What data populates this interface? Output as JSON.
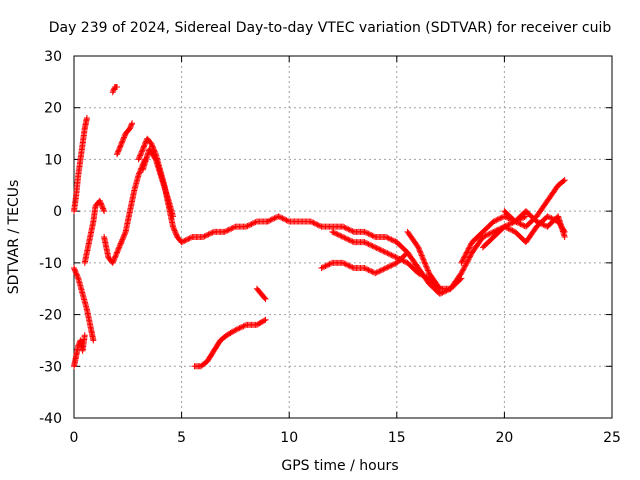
{
  "chart_data": {
    "type": "scatter",
    "title": "Day 239 of 2024, Sidereal Day-to-day VTEC variation (SDTVAR) for receiver cuib",
    "xlabel": "GPS time / hours",
    "ylabel": "SDTVAR / TECUs",
    "xlim": [
      0,
      25
    ],
    "ylim": [
      -40,
      30
    ],
    "xticks": [
      0,
      5,
      10,
      15,
      20,
      25
    ],
    "yticks": [
      -40,
      -30,
      -20,
      -10,
      0,
      10,
      20,
      30
    ],
    "grid": true,
    "marker": "+",
    "series": [
      {
        "name": "SDTVAR",
        "color": "#ff0000",
        "segments": [
          {
            "x": [
              0.0,
              0.1,
              0.2,
              0.3,
              0.4,
              0.5,
              0.6
            ],
            "y": [
              0,
              3,
              7,
              10,
              13,
              16,
              18
            ]
          },
          {
            "x": [
              0.0,
              0.1,
              0.2,
              0.3,
              0.4,
              0.5
            ],
            "y": [
              -30,
              -28,
              -26,
              -25,
              -27,
              -24
            ]
          },
          {
            "x": [
              0.0,
              0.2,
              0.4,
              0.6,
              0.8,
              0.9
            ],
            "y": [
              -11,
              -13,
              -16,
              -19,
              -23,
              -25
            ]
          },
          {
            "x": [
              0.5,
              0.7,
              0.9,
              1.0,
              1.2,
              1.4
            ],
            "y": [
              -10,
              -6,
              -2,
              1,
              2,
              0
            ]
          },
          {
            "x": [
              1.4,
              1.6,
              1.8,
              2.0,
              2.2
            ],
            "y": [
              -5,
              -9,
              -10,
              -8,
              -6
            ]
          },
          {
            "x": [
              1.8,
              1.9,
              2.0
            ],
            "y": [
              23,
              24,
              24
            ]
          },
          {
            "x": [
              2.0,
              2.2,
              2.4,
              2.6,
              2.7
            ],
            "y": [
              11,
              13,
              15,
              16,
              17
            ]
          },
          {
            "x": [
              2.2,
              2.4,
              2.6,
              2.8,
              3.0,
              3.2,
              3.3
            ],
            "y": [
              -6,
              -4,
              0,
              4,
              7,
              9,
              10
            ]
          },
          {
            "x": [
              3.0,
              3.2,
              3.4,
              3.6,
              3.8,
              4.0,
              4.2,
              4.4,
              4.6,
              4.8,
              5.0
            ],
            "y": [
              10,
              12,
              14,
              13,
              11,
              8,
              5,
              1,
              -3,
              -5,
              -6
            ]
          },
          {
            "x": [
              3.2,
              3.5,
              3.8,
              4.1,
              4.4,
              4.6
            ],
            "y": [
              8,
              12,
              10,
              6,
              2,
              -1
            ]
          },
          {
            "x": [
              5.0,
              5.5,
              6.0,
              6.5,
              7.0,
              7.5,
              8.0,
              8.5,
              9.0
            ],
            "y": [
              -6,
              -5,
              -5,
              -4,
              -4,
              -3,
              -3,
              -2,
              -2
            ]
          },
          {
            "x": [
              9.0,
              9.5,
              10.0,
              10.5,
              11.0,
              11.5,
              12.0,
              12.5,
              13.0,
              13.5,
              14.0,
              14.5,
              15.0
            ],
            "y": [
              -2,
              -1,
              -2,
              -2,
              -2,
              -3,
              -3,
              -3,
              -4,
              -4,
              -5,
              -5,
              -6
            ]
          },
          {
            "x": [
              8.5,
              8.7,
              8.9
            ],
            "y": [
              -15,
              -16,
              -17
            ]
          },
          {
            "x": [
              5.6,
              5.9,
              6.2,
              6.5,
              6.8,
              7.1,
              7.5,
              8.0,
              8.5,
              8.9
            ],
            "y": [
              -30,
              -30,
              -29,
              -27,
              -25,
              -24,
              -23,
              -22,
              -22,
              -21
            ]
          },
          {
            "x": [
              11.5,
              12.0,
              12.5,
              13.0,
              13.5,
              14.0,
              14.5,
              15.0,
              15.5
            ],
            "y": [
              -11,
              -10,
              -10,
              -11,
              -11,
              -12,
              -11,
              -10,
              -8
            ]
          },
          {
            "x": [
              12.0,
              12.5,
              13.0,
              13.5,
              14.0,
              14.5,
              15.0,
              15.5,
              16.0,
              16.5,
              17.0
            ],
            "y": [
              -4,
              -5,
              -6,
              -6,
              -7,
              -8,
              -9,
              -10,
              -12,
              -13,
              -15
            ]
          },
          {
            "x": [
              15.0,
              15.5,
              16.0,
              16.5,
              17.0,
              17.5,
              18.0
            ],
            "y": [
              -6,
              -8,
              -11,
              -14,
              -16,
              -15,
              -13
            ]
          },
          {
            "x": [
              15.5,
              16.0,
              16.5,
              17.0,
              17.5
            ],
            "y": [
              -4,
              -7,
              -12,
              -15,
              -15
            ]
          },
          {
            "x": [
              17.5,
              18.0,
              18.5,
              19.0,
              19.5,
              20.0,
              20.5,
              21.0
            ],
            "y": [
              -15,
              -12,
              -8,
              -5,
              -4,
              -3,
              -2,
              -1
            ]
          },
          {
            "x": [
              18.0,
              18.5,
              19.0,
              19.5,
              20.0,
              20.5,
              21.0,
              21.5,
              22.0,
              22.5,
              22.8
            ],
            "y": [
              -10,
              -6,
              -4,
              -2,
              -1,
              -2,
              -3,
              -1,
              2,
              5,
              6
            ]
          },
          {
            "x": [
              19.0,
              19.5,
              20.0,
              20.5,
              21.0,
              21.5,
              22.0,
              22.5,
              22.8
            ],
            "y": [
              -7,
              -5,
              -3,
              -4,
              -6,
              -3,
              -1,
              -2,
              -4
            ]
          },
          {
            "x": [
              20.0,
              20.5,
              21.0,
              21.5,
              22.0,
              22.5,
              22.8
            ],
            "y": [
              0,
              -2,
              0,
              -2,
              -3,
              -1,
              -5
            ]
          }
        ]
      }
    ]
  }
}
